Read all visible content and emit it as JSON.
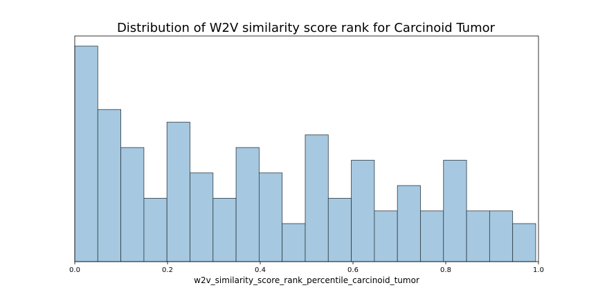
{
  "chart_data": {
    "type": "bar",
    "title": "Distribution of W2V similarity score rank for Carcinoid Tumor",
    "xlabel": "w2v_similarity_score_rank_percentile_carcinoid_tumor",
    "ylabel": "",
    "xlim": [
      0.0,
      1.0
    ],
    "ylim": [
      0,
      17.8
    ],
    "x_ticks": [
      "0.0",
      "0.2",
      "0.4",
      "0.6",
      "0.8",
      "1.0"
    ],
    "bin_edges": [
      0.0,
      0.0497,
      0.0994,
      0.1491,
      0.1988,
      0.2485,
      0.2982,
      0.3479,
      0.3976,
      0.4473,
      0.497,
      0.5467,
      0.5964,
      0.6461,
      0.6958,
      0.7455,
      0.7952,
      0.8449,
      0.8946,
      0.9443,
      0.994
    ],
    "values": [
      17,
      12,
      9,
      5,
      11,
      7,
      5,
      9,
      7,
      3,
      10,
      5,
      8,
      4,
      6,
      4,
      8,
      4,
      4,
      3
    ],
    "grid": false,
    "legend": "none",
    "bar_color": "#a6c8e0",
    "edge_color": "#2b3a42"
  }
}
